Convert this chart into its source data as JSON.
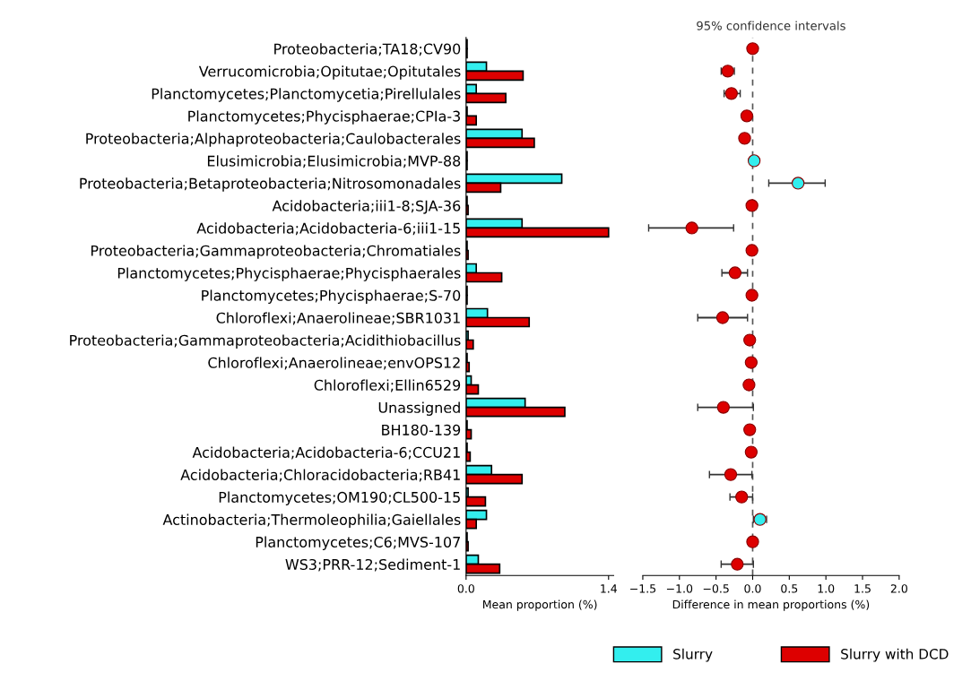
{
  "chart_data": [
    {
      "type": "bar",
      "orientation": "horizontal",
      "xlabel": "Mean proportion (%)",
      "legend": "bottom",
      "categories": [
        "Proteobacteria;TA18;CV90",
        "Verrucomicrobia;Opitutae;Opitutales",
        "Planctomycetes;Planctomycetia;Pirellulales",
        "Planctomycetes;Phycisphaerae;CPIa-3",
        "Proteobacteria;Alphaproteobacteria;Caulobacterales",
        "Elusimicrobia;Elusimicrobia;MVP-88",
        "Proteobacteria;Betaproteobacteria;Nitrosomonadales",
        "Acidobacteria;iii1-8;SJA-36",
        "Acidobacteria;Acidobacteria-6;iii1-15",
        "Proteobacteria;Gammaproteobacteria;Chromatiales",
        "Planctomycetes;Phycisphaerae;Phycisphaerales",
        "Planctomycetes;Phycisphaerae;S-70",
        "Chloroflexi;Anaerolineae;SBR1031",
        "Proteobacteria;Gammaproteobacteria;Acidithiobacillus",
        "Chloroflexi;Anaerolineae;envOPS12",
        "Chloroflexi;Ellin6529",
        "Unassigned",
        "BH180-139",
        "Acidobacteria;Acidobacteria-6;CCU21",
        "Acidobacteria;Chloracidobacteria;RB41",
        "Planctomycetes;OM190;CL500-15",
        "Actinobacteria;Thermoleophilia;Gaiellales",
        "Planctomycetes;C6;MVS-107",
        "WS3;PRR-12;Sediment-1"
      ],
      "series": [
        {
          "name": "Slurry",
          "color": "#33eeee",
          "values": [
            0.01,
            0.2,
            0.1,
            0.01,
            0.55,
            0.01,
            0.94,
            0.01,
            0.55,
            0.01,
            0.1,
            0.01,
            0.21,
            0.02,
            0.01,
            0.05,
            0.58,
            0.01,
            0.01,
            0.25,
            0.02,
            0.2,
            0.01,
            0.12
          ]
        },
        {
          "name": "Slurry with DCD",
          "color": "#dd0000",
          "values": [
            0.01,
            0.56,
            0.39,
            0.1,
            0.67,
            0.01,
            0.34,
            0.02,
            1.4,
            0.02,
            0.35,
            0.01,
            0.62,
            0.07,
            0.03,
            0.12,
            0.97,
            0.05,
            0.04,
            0.55,
            0.19,
            0.1,
            0.02,
            0.33
          ]
        }
      ],
      "xlim": [
        0,
        1.45
      ],
      "xticks": [
        {
          "value": 0,
          "label": "0.0"
        },
        1.4
      ]
    },
    {
      "type": "scatter",
      "orientation": "horizontal",
      "title": "95% confidence intervals",
      "xlabel": "Difference in mean proportions (%)",
      "tick_labels": "x",
      "categories": [
        null,
        null,
        null,
        null,
        null,
        null,
        null,
        null,
        null,
        null,
        null,
        null,
        null,
        null,
        null,
        null,
        null,
        null,
        null,
        null,
        null,
        null,
        null,
        null
      ],
      "values": [
        0.0,
        -0.34,
        -0.29,
        -0.08,
        -0.11,
        0.02,
        0.62,
        -0.01,
        -0.83,
        -0.01,
        -0.24,
        -0.01,
        -0.41,
        -0.04,
        -0.02,
        -0.05,
        -0.4,
        -0.04,
        -0.02,
        -0.3,
        -0.15,
        0.1,
        0.0,
        -0.21
      ],
      "colors": [
        "#dd0000",
        "#dd0000",
        "#dd0000",
        "#dd0000",
        "#dd0000",
        "#33eeee",
        "#33eeee",
        "#dd0000",
        "#dd0000",
        "#dd0000",
        "#dd0000",
        "#dd0000",
        "#dd0000",
        "#dd0000",
        "#dd0000",
        "#dd0000",
        "#dd0000",
        "#dd0000",
        "#dd0000",
        "#dd0000",
        "#dd0000",
        "#33eeee",
        "#dd0000",
        "#dd0000"
      ],
      "errors": [
        null,
        [
          -0.43,
          -0.25
        ],
        [
          -0.39,
          -0.17
        ],
        null,
        null,
        null,
        [
          0.22,
          0.99
        ],
        null,
        [
          -1.42,
          -0.26
        ],
        null,
        [
          -0.42,
          -0.07
        ],
        null,
        [
          -0.75,
          -0.07
        ],
        null,
        null,
        null,
        [
          -0.75,
          0.01
        ],
        null,
        null,
        [
          -0.59,
          -0.01
        ],
        [
          -0.31,
          0.0
        ],
        [
          0.01,
          0.19
        ],
        null,
        [
          -0.43,
          0.01
        ]
      ],
      "ref_lines": [
        {
          "axis": "x",
          "value": 0,
          "line_style": "dashed",
          "color": "#555555"
        }
      ],
      "xlim": [
        -1.5,
        2.0
      ],
      "xticks": [
        {
          "value": -1.5,
          "label": "−1.5"
        },
        {
          "value": -1.0,
          "label": "−1.0"
        },
        {
          "value": -0.5,
          "label": "−0.5"
        },
        {
          "value": 0,
          "label": "0.0"
        },
        0.5,
        {
          "value": 1,
          "label": "1.0"
        },
        1.5,
        {
          "value": 2,
          "label": "2.0"
        }
      ]
    }
  ]
}
